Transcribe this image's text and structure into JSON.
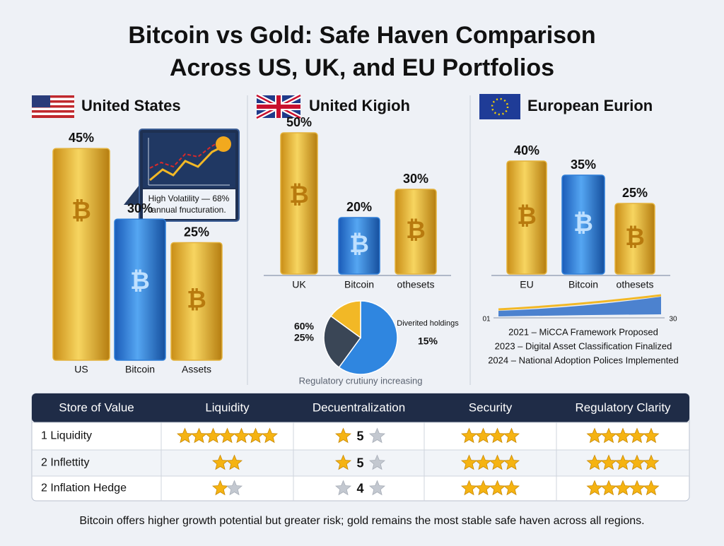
{
  "title": [
    "Bitcoin vs Gold: Safe Haven Comparison",
    "Across US, UK, and EU Portfolios"
  ],
  "symbol": "₿",
  "chart_data": [
    {
      "type": "bar",
      "title": "United States",
      "categories": [
        "US",
        "Bitcoin",
        "Assets"
      ],
      "values": [
        45,
        30,
        25
      ],
      "value_labels": [
        "45%",
        "30%",
        "25%"
      ],
      "colors": [
        "#e3b23c",
        "#2f7fd8",
        "#e3b23c"
      ],
      "ylim": [
        0,
        50
      ]
    },
    {
      "type": "bar",
      "title": "United Kigioh",
      "categories": [
        "UK",
        "Bitcoin",
        "othesets"
      ],
      "values": [
        50,
        20,
        30
      ],
      "value_labels": [
        "50%",
        "20%",
        "30%"
      ],
      "colors": [
        "#e3b23c",
        "#2f7fd8",
        "#e3b23c"
      ],
      "ylim": [
        0,
        50
      ]
    },
    {
      "type": "bar",
      "title": "European Eurion",
      "categories": [
        "EU",
        "Bitcoin",
        "othesets"
      ],
      "values": [
        40,
        35,
        25
      ],
      "value_labels": [
        "40%",
        "35%",
        "25%"
      ],
      "colors": [
        "#e3b23c",
        "#2f7fd8",
        "#e3b23c"
      ],
      "ylim": [
        0,
        50
      ]
    },
    {
      "type": "pie",
      "categories": [
        null,
        null,
        "Diverited holdings"
      ],
      "values": [
        60,
        25,
        15
      ],
      "value_labels": [
        "60%",
        "25%",
        "15%"
      ],
      "colors": [
        "#2f86e0",
        "#3a4656",
        "#f2b826"
      ],
      "caption": "Regulatory crutiuny increasing"
    }
  ],
  "inset": [
    "High Volatility — 68%",
    "annual fnucturation."
  ],
  "timeline": {
    "axis_left": "01",
    "axis_right": "30",
    "events": [
      "2021 – MiCCA Framework Proposed",
      "2023 – Digital Asset Classification Finalized",
      "2024 – National Adoption Polices Implemented"
    ]
  },
  "table": {
    "header": [
      "Store of Value",
      "Liquidity",
      "Decuentralization",
      "Security",
      "Regulatory Clarity"
    ],
    "rows": [
      [
        {
          "text": "1  Liquidity"
        },
        {
          "stars": 7
        },
        {
          "text": "5",
          "stars": 1,
          "of": 2
        },
        {
          "stars": 4
        },
        {
          "stars": 5
        }
      ],
      [
        {
          "text": "2  Inflettity"
        },
        {
          "stars": 2
        },
        {
          "text": "5",
          "stars": 1,
          "of": 2
        },
        {
          "stars": 4
        },
        {
          "stars": 5
        }
      ],
      [
        {
          "text": "2  Inflation Hedge"
        },
        {
          "stars": 1,
          "of": 2
        },
        {
          "text": "4",
          "stars": 0,
          "of": 2
        },
        {
          "stars": 4
        },
        {
          "stars": 5
        }
      ]
    ]
  },
  "footer": "Bitcoin offers higher growth potential but greater risk; gold remains the most stable safe haven across all regions."
}
